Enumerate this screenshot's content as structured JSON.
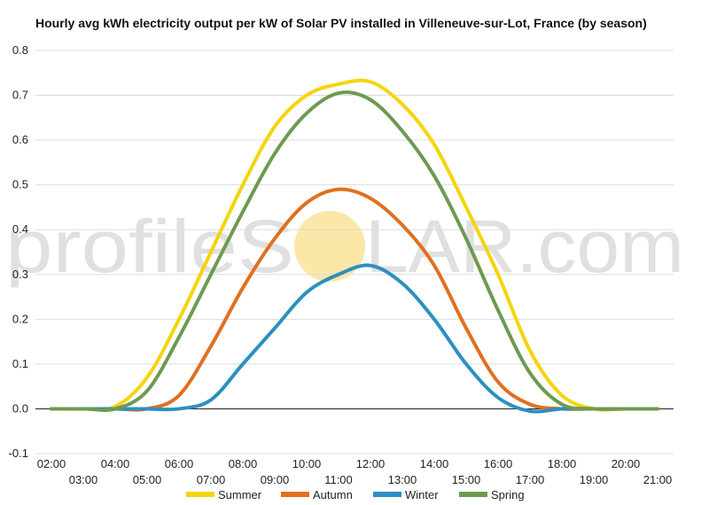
{
  "colors": {
    "summer": "#f5d40e",
    "autumn": "#e07020",
    "winter": "#2b90bf",
    "spring": "#6e9a50",
    "grid": "#dddddd",
    "zero_line": "#222222",
    "watermark_sun": "#fbe7a8"
  },
  "watermark": {
    "left": "profileS",
    "right": "LAR.com"
  },
  "chart_data": {
    "type": "line",
    "title": "Hourly avg kWh electricity output per kW of Solar PV installed in Villeneuve-sur-Lot, France (by season)",
    "xlabel": "",
    "ylabel": "",
    "ylim": [
      -0.1,
      0.8
    ],
    "yticks": [
      "-0.1",
      "0.0",
      "0.1",
      "0.2",
      "0.3",
      "0.4",
      "0.5",
      "0.6",
      "0.7",
      "0.8"
    ],
    "xlim": [
      1.5,
      21.5
    ],
    "xticks_upper": [
      "02:00",
      "04:00",
      "06:00",
      "08:00",
      "10:00",
      "12:00",
      "14:00",
      "16:00",
      "18:00",
      "20:00"
    ],
    "xticks_lower": [
      "03:00",
      "05:00",
      "07:00",
      "09:00",
      "11:00",
      "13:00",
      "15:00",
      "17:00",
      "19:00",
      "21:00"
    ],
    "grid": true,
    "legend_position": "bottom",
    "x": [
      2,
      3,
      4,
      5,
      6,
      7,
      8,
      9,
      10,
      11,
      12,
      13,
      14,
      15,
      16,
      17,
      18,
      19,
      20,
      21
    ],
    "series": [
      {
        "name": "Summer",
        "values": [
          0.0,
          0.0,
          0.005,
          0.07,
          0.2,
          0.35,
          0.5,
          0.63,
          0.7,
          0.725,
          0.73,
          0.68,
          0.59,
          0.45,
          0.3,
          0.13,
          0.03,
          0.0,
          0.0,
          0.0
        ]
      },
      {
        "name": "Autumn",
        "values": [
          0.0,
          0.0,
          0.0,
          0.0,
          0.03,
          0.14,
          0.27,
          0.38,
          0.46,
          0.49,
          0.47,
          0.41,
          0.32,
          0.18,
          0.06,
          0.01,
          0.0,
          0.0,
          0.0,
          0.0
        ]
      },
      {
        "name": "Winter",
        "values": [
          0.0,
          0.0,
          0.0,
          0.0,
          0.0,
          0.02,
          0.1,
          0.18,
          0.26,
          0.3,
          0.32,
          0.28,
          0.2,
          0.1,
          0.025,
          -0.005,
          0.0,
          0.0,
          0.0,
          0.0
        ]
      },
      {
        "name": "Spring",
        "values": [
          0.0,
          0.0,
          0.0,
          0.04,
          0.16,
          0.3,
          0.44,
          0.57,
          0.66,
          0.705,
          0.69,
          0.62,
          0.52,
          0.38,
          0.22,
          0.08,
          0.01,
          0.0,
          0.0,
          0.0
        ]
      }
    ]
  }
}
